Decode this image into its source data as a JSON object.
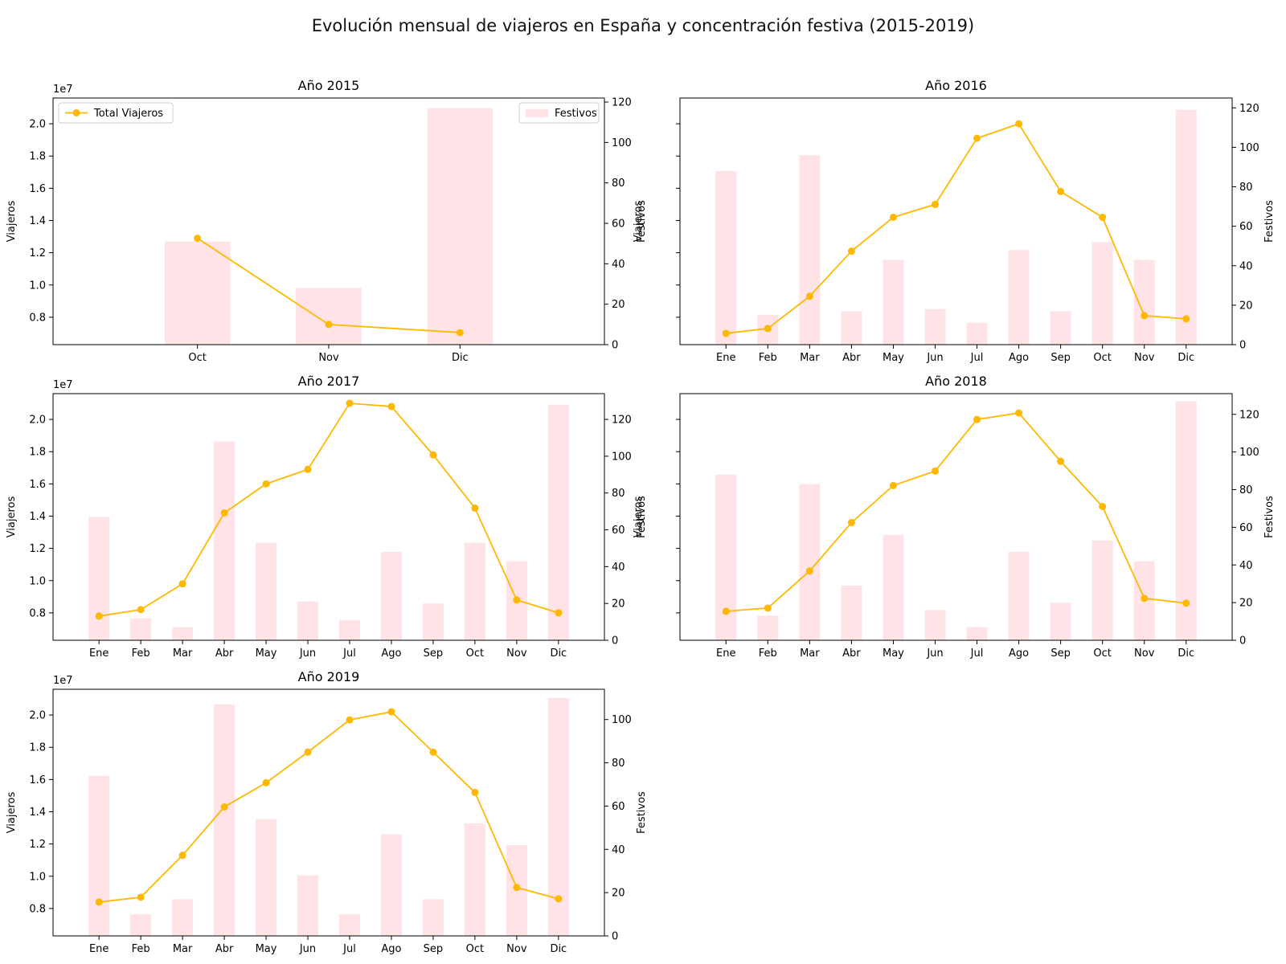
{
  "figure": {
    "title": "Evolución mensual de viajeros en España y concentración festiva (2015-2019)"
  },
  "style": {
    "line_color": "#FFB800",
    "bar_color": "#FFE3E6",
    "axis_color": "#000000"
  },
  "chart_data": [
    {
      "type": "bar+line",
      "title": "Año 2015",
      "categories": [
        "Oct",
        "Nov",
        "Dic"
      ],
      "ylabel": "Viajeros",
      "y2label": "Festivos",
      "offset_label": "1e7",
      "ylim": [
        0.63,
        2.16
      ],
      "y2lim": [
        0,
        122
      ],
      "yticks": [
        0.8,
        1.0,
        1.2,
        1.4,
        1.6,
        1.8,
        2.0
      ],
      "y2ticks": [
        0,
        20,
        40,
        60,
        80,
        100,
        120
      ],
      "show_y_tick_labels": true,
      "legend": "inside",
      "series": [
        {
          "name": "Total Viajeros",
          "kind": "line",
          "axis": "left",
          "values": [
            1.29,
            0.755,
            0.705
          ]
        },
        {
          "name": "Festivos",
          "kind": "bar",
          "axis": "right",
          "values": [
            51,
            28,
            117
          ]
        }
      ]
    },
    {
      "type": "bar+line",
      "title": "Año 2016",
      "categories": [
        "Ene",
        "Feb",
        "Mar",
        "Abr",
        "May",
        "Jun",
        "Jul",
        "Ago",
        "Sep",
        "Oct",
        "Nov",
        "Dic"
      ],
      "ylabel": "Viajeros",
      "y2label": "Festivos",
      "offset_label": "",
      "ylim": [
        0.63,
        2.16
      ],
      "y2lim": [
        0,
        125
      ],
      "yticks": [
        0.8,
        1.0,
        1.2,
        1.4,
        1.6,
        1.8,
        2.0
      ],
      "y2ticks": [
        0,
        20,
        40,
        60,
        80,
        100,
        120
      ],
      "show_y_tick_labels": false,
      "series": [
        {
          "name": "Total Viajeros",
          "kind": "line",
          "axis": "left",
          "values": [
            0.7,
            0.73,
            0.93,
            1.21,
            1.42,
            1.5,
            1.91,
            2.0,
            1.58,
            1.42,
            0.81,
            0.79
          ]
        },
        {
          "name": "Festivos",
          "kind": "bar",
          "axis": "right",
          "values": [
            88,
            15,
            96,
            17,
            43,
            18,
            11,
            48,
            17,
            52,
            43,
            119
          ]
        }
      ]
    },
    {
      "type": "bar+line",
      "title": "Año 2017",
      "categories": [
        "Ene",
        "Feb",
        "Mar",
        "Abr",
        "May",
        "Jun",
        "Jul",
        "Ago",
        "Sep",
        "Oct",
        "Nov",
        "Dic"
      ],
      "ylabel": "Viajeros",
      "y2label": "Festivos",
      "offset_label": "1e7",
      "ylim": [
        0.63,
        2.16
      ],
      "y2lim": [
        0,
        134
      ],
      "yticks": [
        0.8,
        1.0,
        1.2,
        1.4,
        1.6,
        1.8,
        2.0
      ],
      "y2ticks": [
        0,
        20,
        40,
        60,
        80,
        100,
        120
      ],
      "show_y_tick_labels": true,
      "series": [
        {
          "name": "Total Viajeros",
          "kind": "line",
          "axis": "left",
          "values": [
            0.78,
            0.82,
            0.98,
            1.42,
            1.6,
            1.69,
            2.1,
            2.08,
            1.78,
            1.45,
            0.88,
            0.8
          ]
        },
        {
          "name": "Festivos",
          "kind": "bar",
          "axis": "right",
          "values": [
            67,
            12,
            7,
            108,
            53,
            21,
            11,
            48,
            20,
            53,
            43,
            128
          ]
        }
      ]
    },
    {
      "type": "bar+line",
      "title": "Año 2018",
      "categories": [
        "Ene",
        "Feb",
        "Mar",
        "Abr",
        "May",
        "Jun",
        "Jul",
        "Ago",
        "Sep",
        "Oct",
        "Nov",
        "Dic"
      ],
      "ylabel": "Viajeros",
      "y2label": "Festivos",
      "offset_label": "",
      "ylim": [
        0.63,
        2.16
      ],
      "y2lim": [
        0,
        131
      ],
      "yticks": [
        0.8,
        1.0,
        1.2,
        1.4,
        1.6,
        1.8,
        2.0
      ],
      "y2ticks": [
        0,
        20,
        40,
        60,
        80,
        100,
        120
      ],
      "show_y_tick_labels": false,
      "series": [
        {
          "name": "Total Viajeros",
          "kind": "line",
          "axis": "left",
          "values": [
            0.81,
            0.83,
            1.06,
            1.36,
            1.59,
            1.68,
            2.0,
            2.04,
            1.74,
            1.46,
            0.89,
            0.86
          ]
        },
        {
          "name": "Festivos",
          "kind": "bar",
          "axis": "right",
          "values": [
            88,
            13,
            83,
            29,
            56,
            16,
            7,
            47,
            20,
            53,
            42,
            127
          ]
        }
      ]
    },
    {
      "type": "bar+line",
      "title": "Año 2019",
      "categories": [
        "Ene",
        "Feb",
        "Mar",
        "Abr",
        "May",
        "Jun",
        "Jul",
        "Ago",
        "Sep",
        "Oct",
        "Nov",
        "Dic"
      ],
      "ylabel": "Viajeros",
      "y2label": "Festivos",
      "offset_label": "1e7",
      "ylim": [
        0.63,
        2.16
      ],
      "y2lim": [
        0,
        114
      ],
      "yticks": [
        0.8,
        1.0,
        1.2,
        1.4,
        1.6,
        1.8,
        2.0
      ],
      "y2ticks": [
        0,
        20,
        40,
        60,
        80,
        100
      ],
      "show_y_tick_labels": true,
      "series": [
        {
          "name": "Total Viajeros",
          "kind": "line",
          "axis": "left",
          "values": [
            0.84,
            0.87,
            1.13,
            1.43,
            1.58,
            1.77,
            1.97,
            2.02,
            1.77,
            1.52,
            0.93,
            0.86
          ]
        },
        {
          "name": "Festivos",
          "kind": "bar",
          "axis": "right",
          "values": [
            74,
            10,
            17,
            107,
            54,
            28,
            10,
            47,
            17,
            52,
            42,
            110
          ]
        }
      ]
    }
  ]
}
